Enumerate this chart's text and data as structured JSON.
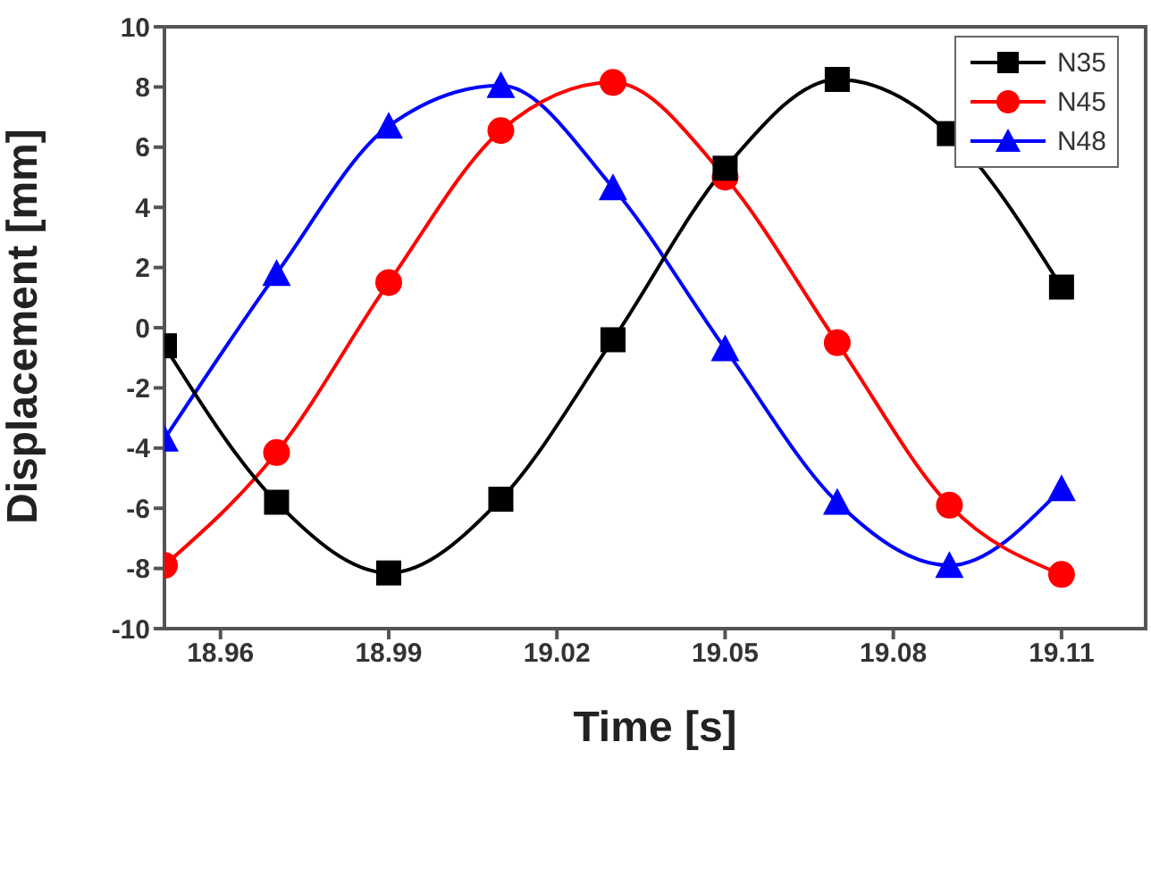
{
  "chart_data": {
    "type": "line",
    "xlabel": "Time [s]",
    "ylabel": "Displacement [mm]",
    "x": [
      18.95,
      18.97,
      18.99,
      19.01,
      19.03,
      19.05,
      19.07,
      19.09,
      19.11
    ],
    "series": [
      {
        "name": "N35",
        "color": "#000000",
        "marker": "square",
        "values": [
          -0.6,
          -5.8,
          -8.15,
          -5.7,
          -0.4,
          5.3,
          8.25,
          6.45,
          1.35
        ]
      },
      {
        "name": "N45",
        "color": "#ff0000",
        "marker": "circle",
        "values": [
          -7.9,
          -4.15,
          1.5,
          6.55,
          8.15,
          5.0,
          -0.5,
          -5.9,
          -8.2
        ]
      },
      {
        "name": "N48",
        "color": "#0000ff",
        "marker": "triangle",
        "values": [
          -3.7,
          1.8,
          6.7,
          8.05,
          4.65,
          -0.7,
          -5.8,
          -7.9,
          -5.35
        ]
      }
    ],
    "xlim": [
      18.95,
      19.125
    ],
    "xticks": [
      18.96,
      18.99,
      19.02,
      19.05,
      19.08,
      19.11
    ],
    "ylim": [
      -10,
      10
    ],
    "yticks": [
      -10,
      -8,
      -6,
      -4,
      -2,
      0,
      2,
      4,
      6,
      8,
      10
    ],
    "grid": false,
    "legend": "top right",
    "line_style": "solid"
  }
}
